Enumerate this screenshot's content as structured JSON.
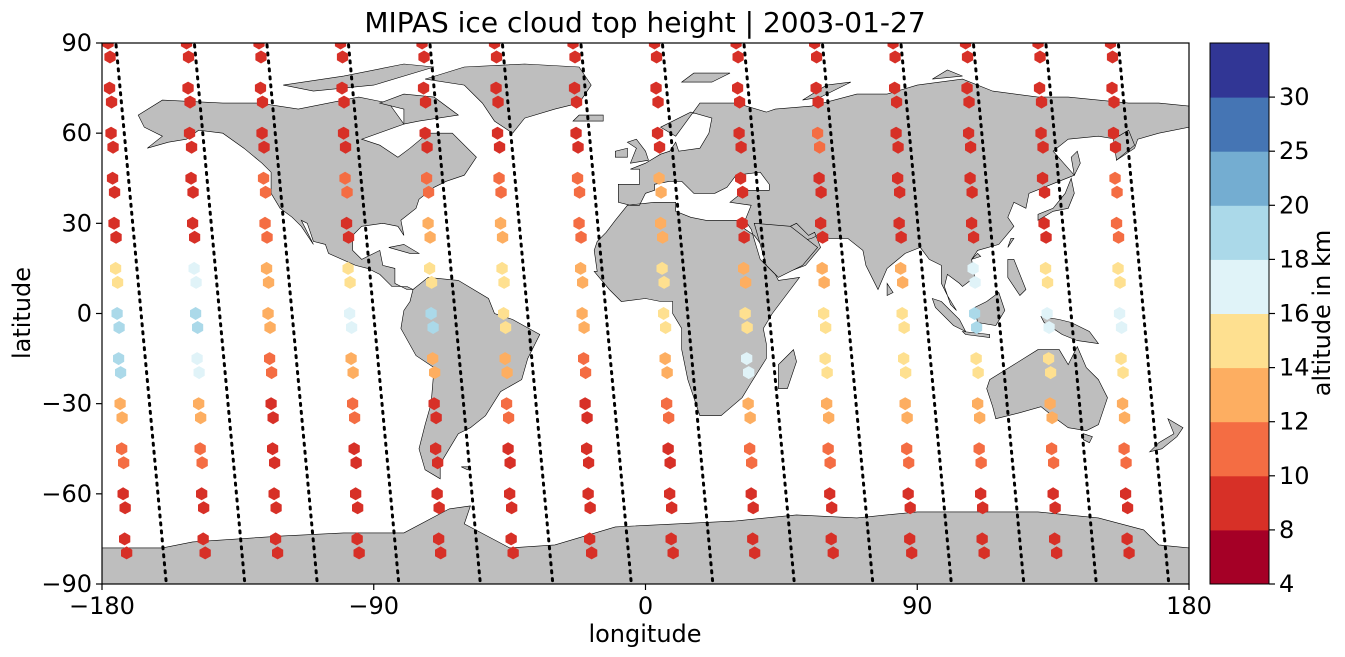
{
  "title": "MIPAS ice cloud top height | 2003-01-27",
  "xlabel": "longitude",
  "ylabel": "latitude",
  "x_ticks": [
    "−180",
    "−90",
    "0",
    "90",
    "180"
  ],
  "y_ticks": [
    "−90",
    "−60",
    "−30",
    "0",
    "30",
    "60",
    "90"
  ],
  "colorbar": {
    "label": "altitude in km",
    "boundaries": [
      4,
      8,
      10,
      12,
      14,
      16,
      18,
      20,
      25,
      30
    ],
    "tick_labels": [
      "4",
      "8",
      "10",
      "12",
      "14",
      "16",
      "18",
      "20",
      "25",
      "30"
    ],
    "colors": [
      "#a50026",
      "#d73027",
      "#f46d43",
      "#fdae61",
      "#fee090",
      "#e0f3f8",
      "#abd9e9",
      "#74add1",
      "#4575b4",
      "#313695"
    ]
  },
  "colors": {
    "land": "#bebebe",
    "coastline": "#000000",
    "orbit_track": "#000000"
  },
  "chart_data": {
    "type": "scatter",
    "projection": "plate-carree",
    "xlim": [
      -180,
      180
    ],
    "ylim": [
      -90,
      90
    ],
    "marker": "hexagon",
    "title": "MIPAS ice cloud top height | 2003-01-27",
    "xlabel": "longitude",
    "ylabel": "latitude",
    "color_variable": "altitude in km",
    "tracks": [
      {
        "lon_start": -178,
        "lon_end": -172,
        "points": [
          [
            90,
            9
          ],
          [
            75,
            9
          ],
          [
            60,
            9
          ],
          [
            45,
            9
          ],
          [
            30,
            9
          ],
          [
            15,
            15
          ],
          [
            0,
            19
          ],
          [
            -15,
            19
          ],
          [
            -30,
            13
          ],
          [
            -45,
            11
          ],
          [
            -60,
            9
          ],
          [
            -75,
            8
          ]
        ]
      },
      {
        "lon_start": -152,
        "lon_end": -146,
        "points": [
          [
            90,
            8
          ],
          [
            75,
            9
          ],
          [
            60,
            9
          ],
          [
            45,
            9
          ],
          [
            30,
            9
          ],
          [
            15,
            17
          ],
          [
            0,
            19
          ],
          [
            -15,
            17
          ],
          [
            -30,
            13
          ],
          [
            -45,
            11
          ],
          [
            -60,
            9
          ],
          [
            -75,
            8
          ]
        ]
      },
      {
        "lon_start": -128,
        "lon_end": -122,
        "points": [
          [
            90,
            8
          ],
          [
            75,
            9
          ],
          [
            60,
            9
          ],
          [
            45,
            11
          ],
          [
            30,
            11
          ],
          [
            15,
            13
          ],
          [
            0,
            13
          ],
          [
            -15,
            11
          ],
          [
            -30,
            9
          ],
          [
            -45,
            9
          ],
          [
            -60,
            9
          ],
          [
            -75,
            8
          ]
        ]
      },
      {
        "lon_start": -101,
        "lon_end": -95,
        "points": [
          [
            90,
            8
          ],
          [
            75,
            9
          ],
          [
            60,
            9
          ],
          [
            45,
            11
          ],
          [
            30,
            9
          ],
          [
            15,
            15
          ],
          [
            0,
            17
          ],
          [
            -15,
            13
          ],
          [
            -30,
            11
          ],
          [
            -45,
            9
          ],
          [
            -60,
            9
          ],
          [
            -75,
            8
          ]
        ]
      },
      {
        "lon_start": -74,
        "lon_end": -68,
        "points": [
          [
            90,
            8
          ],
          [
            75,
            9
          ],
          [
            60,
            9
          ],
          [
            45,
            11
          ],
          [
            30,
            13
          ],
          [
            15,
            15
          ],
          [
            0,
            19
          ],
          [
            -15,
            13
          ],
          [
            -30,
            9
          ],
          [
            -45,
            9
          ],
          [
            -60,
            8
          ],
          [
            -75,
            9
          ]
        ]
      },
      {
        "lon_start": -50,
        "lon_end": -44,
        "points": [
          [
            90,
            8
          ],
          [
            75,
            9
          ],
          [
            60,
            9
          ],
          [
            45,
            11
          ],
          [
            30,
            13
          ],
          [
            15,
            15
          ],
          [
            0,
            15
          ],
          [
            -15,
            13
          ],
          [
            -30,
            11
          ],
          [
            -45,
            9
          ],
          [
            -60,
            9
          ],
          [
            -75,
            8
          ]
        ]
      },
      {
        "lon_start": -24,
        "lon_end": -18,
        "points": [
          [
            90,
            8
          ],
          [
            75,
            9
          ],
          [
            60,
            9
          ],
          [
            45,
            11
          ],
          [
            30,
            11
          ],
          [
            15,
            13
          ],
          [
            0,
            13
          ],
          [
            -15,
            11
          ],
          [
            -30,
            9
          ],
          [
            -45,
            9
          ],
          [
            -60,
            8
          ],
          [
            -75,
            9
          ]
        ]
      },
      {
        "lon_start": 3,
        "lon_end": 9,
        "points": [
          [
            90,
            8
          ],
          [
            75,
            9
          ],
          [
            60,
            9
          ],
          [
            45,
            13
          ],
          [
            30,
            13
          ],
          [
            15,
            15
          ],
          [
            0,
            15
          ],
          [
            -15,
            13
          ],
          [
            -30,
            11
          ],
          [
            -45,
            9
          ],
          [
            -60,
            9
          ],
          [
            -75,
            8
          ]
        ]
      },
      {
        "lon_start": 30,
        "lon_end": 36,
        "points": [
          [
            90,
            8
          ],
          [
            75,
            9
          ],
          [
            60,
            9
          ],
          [
            45,
            9
          ],
          [
            30,
            9
          ],
          [
            15,
            13
          ],
          [
            0,
            15
          ],
          [
            -15,
            17
          ],
          [
            -30,
            13
          ],
          [
            -45,
            11
          ],
          [
            -60,
            9
          ],
          [
            -75,
            8
          ]
        ]
      },
      {
        "lon_start": 56,
        "lon_end": 62,
        "points": [
          [
            90,
            8
          ],
          [
            75,
            9
          ],
          [
            60,
            11
          ],
          [
            45,
            9
          ],
          [
            30,
            9
          ],
          [
            15,
            13
          ],
          [
            0,
            15
          ],
          [
            -15,
            15
          ],
          [
            -30,
            13
          ],
          [
            -45,
            11
          ],
          [
            -60,
            9
          ],
          [
            -75,
            8
          ]
        ]
      },
      {
        "lon_start": 82,
        "lon_end": 88,
        "points": [
          [
            90,
            8
          ],
          [
            75,
            9
          ],
          [
            60,
            9
          ],
          [
            45,
            9
          ],
          [
            30,
            9
          ],
          [
            15,
            13
          ],
          [
            0,
            15
          ],
          [
            -15,
            15
          ],
          [
            -30,
            13
          ],
          [
            -45,
            11
          ],
          [
            -60,
            9
          ],
          [
            -75,
            8
          ]
        ]
      },
      {
        "lon_start": 106,
        "lon_end": 112,
        "points": [
          [
            90,
            8
          ],
          [
            75,
            9
          ],
          [
            60,
            9
          ],
          [
            45,
            9
          ],
          [
            30,
            9
          ],
          [
            15,
            17
          ],
          [
            0,
            19
          ],
          [
            -15,
            15
          ],
          [
            -30,
            13
          ],
          [
            -45,
            11
          ],
          [
            -60,
            9
          ],
          [
            -75,
            8
          ]
        ]
      },
      {
        "lon_start": 130,
        "lon_end": 136,
        "points": [
          [
            90,
            8
          ],
          [
            75,
            9
          ],
          [
            60,
            9
          ],
          [
            45,
            9
          ],
          [
            30,
            9
          ],
          [
            15,
            15
          ],
          [
            0,
            17
          ],
          [
            -15,
            15
          ],
          [
            -30,
            13
          ],
          [
            -45,
            11
          ],
          [
            -60,
            9
          ],
          [
            -75,
            8
          ]
        ]
      },
      {
        "lon_start": 154,
        "lon_end": 160,
        "points": [
          [
            90,
            8
          ],
          [
            75,
            9
          ],
          [
            60,
            9
          ],
          [
            45,
            11
          ],
          [
            30,
            11
          ],
          [
            15,
            15
          ],
          [
            0,
            17
          ],
          [
            -15,
            15
          ],
          [
            -30,
            13
          ],
          [
            -45,
            11
          ],
          [
            -60,
            9
          ],
          [
            -75,
            8
          ]
        ]
      }
    ]
  }
}
